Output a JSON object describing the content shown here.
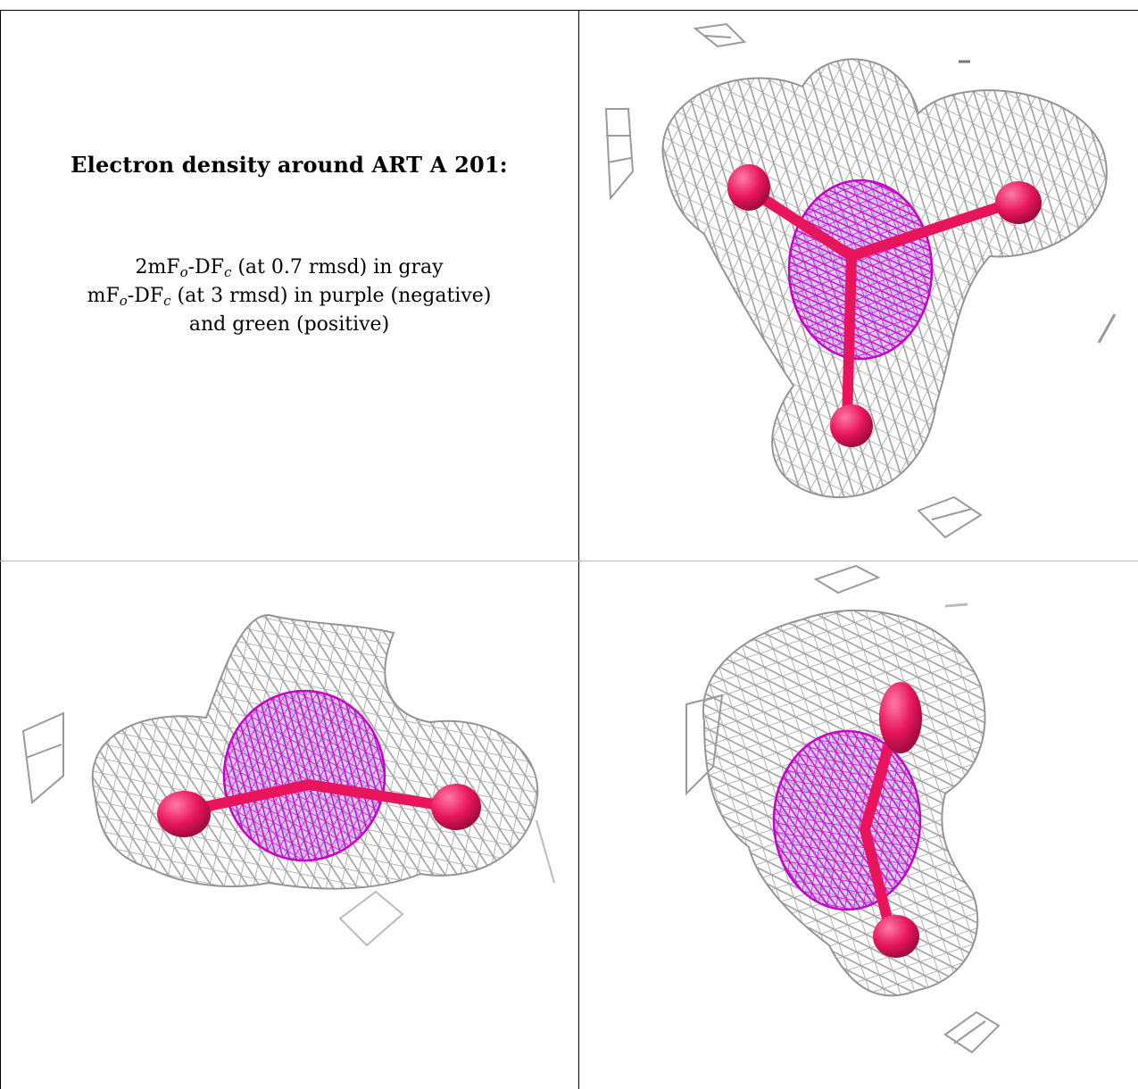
{
  "figure": {
    "title": "Electron density around ART A 201:",
    "legend": {
      "line1": {
        "a": "2mF",
        "a_sub": "o",
        "b": "-DF",
        "b_sub": "c",
        "rest": " (at 0.7 rmsd) in gray"
      },
      "line2": {
        "a": "mF",
        "a_sub": "o",
        "b": "-DF",
        "b_sub": "c",
        "rest": " (at 3 rmsd) in purple (negative)"
      },
      "line3": "and green (positive)"
    },
    "colors": {
      "mesh_2fofc": "#9a9a9a",
      "mesh_fofc_negative": "#d400d4",
      "density_core": "#a98ae0",
      "atom_oxygen": "#e8155c",
      "border": "#000000"
    },
    "panels": [
      {
        "name": "view-top",
        "icon": "density-mesh-icon"
      },
      {
        "name": "view-side",
        "icon": "density-mesh-icon"
      },
      {
        "name": "view-oblique",
        "icon": "density-mesh-icon"
      }
    ]
  }
}
